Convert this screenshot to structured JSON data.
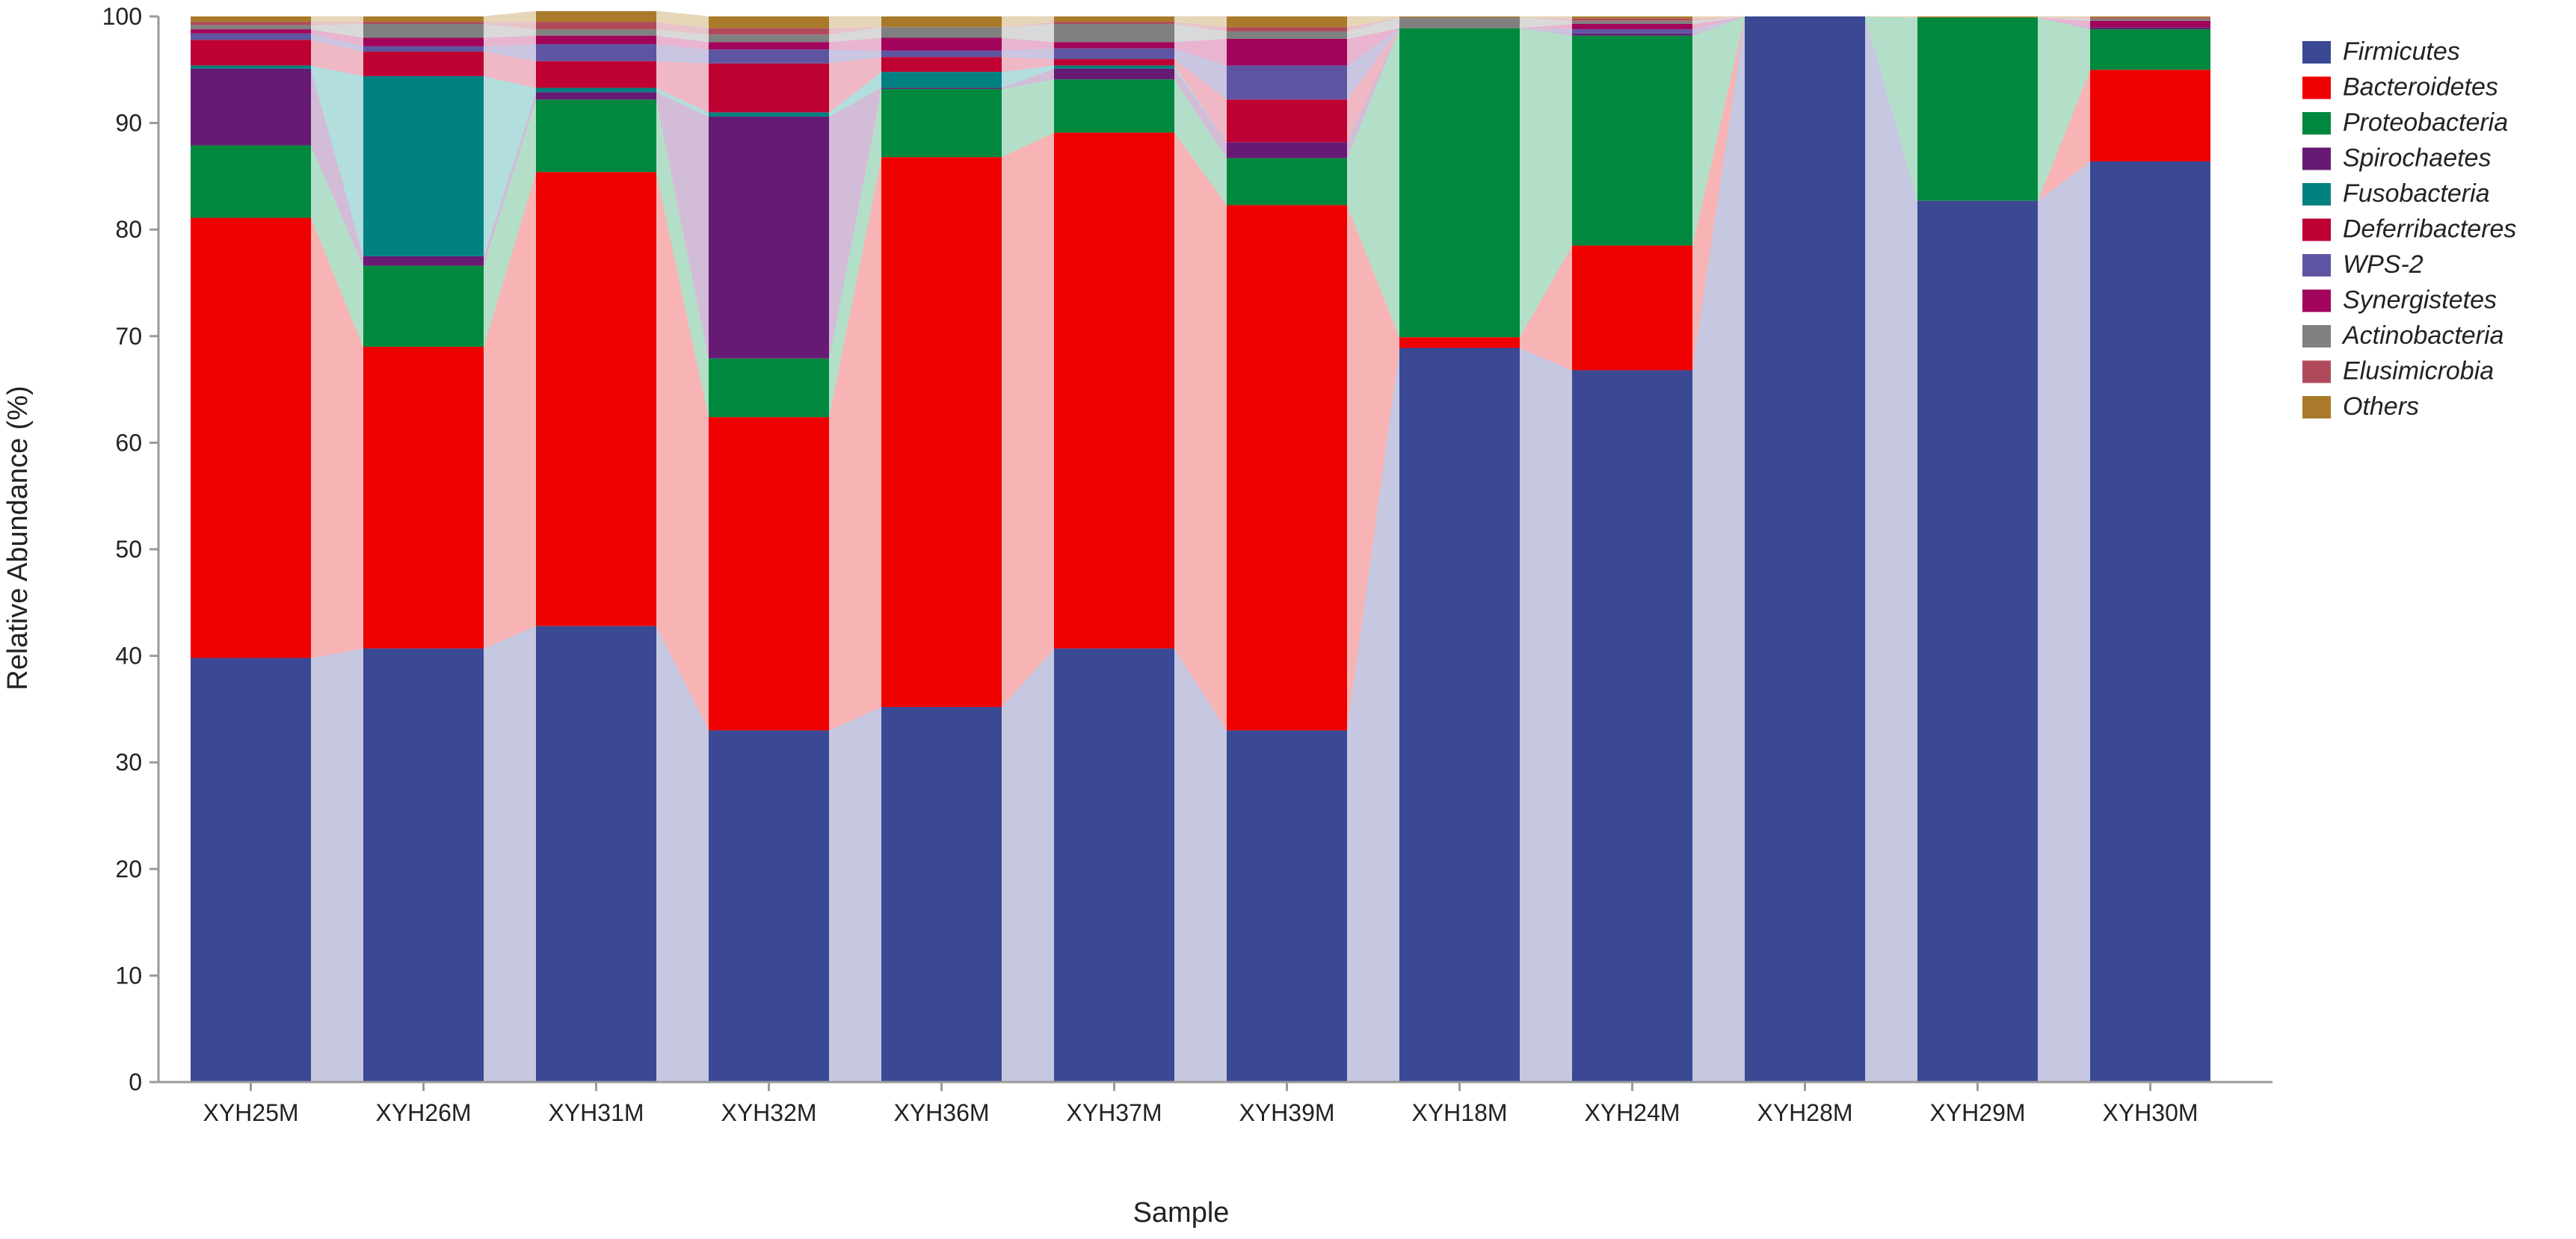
{
  "chart_data": {
    "type": "bar",
    "stacked": true,
    "percent": true,
    "xlabel": "Sample",
    "ylabel": "Relative Abundance (%)",
    "ylim": [
      0,
      100
    ],
    "yticks": [
      0,
      10,
      20,
      30,
      40,
      50,
      60,
      70,
      80,
      90,
      100
    ],
    "grid": false,
    "legend_position": "right",
    "categories": [
      "XYH25M",
      "XYH26M",
      "XYH31M",
      "XYH32M",
      "XYH36M",
      "XYH37M",
      "XYH39M",
      "XYH18M",
      "XYH24M",
      "XYH28M",
      "XYH29M",
      "XYH30M"
    ],
    "series": [
      {
        "name": "Firmicutes",
        "color": "#3b4894",
        "flow_color": "#c5c8e0",
        "values": [
          39.8,
          40.7,
          42.8,
          33.0,
          35.2,
          40.7,
          33.0,
          68.9,
          66.8,
          100.0,
          82.7,
          86.4
        ]
      },
      {
        "name": "Bacteroidetes",
        "color": "#ee0000",
        "flow_color": "#f8b4b4",
        "values": [
          41.3,
          28.3,
          42.6,
          29.4,
          51.6,
          48.4,
          49.3,
          1.0,
          11.7,
          0.0,
          0.0,
          8.6
        ]
      },
      {
        "name": "Proteobacteria",
        "color": "#00883e",
        "flow_color": "#b3dfc8",
        "values": [
          6.8,
          7.6,
          6.8,
          5.5,
          6.4,
          5.0,
          4.4,
          29.0,
          19.7,
          0.0,
          17.2,
          3.8
        ]
      },
      {
        "name": "Spirochaetes",
        "color": "#661a73",
        "flow_color": "#d2bcd8",
        "values": [
          7.2,
          0.9,
          0.7,
          22.7,
          0.1,
          1.0,
          1.5,
          0.0,
          0.2,
          0.0,
          0.0,
          0.2
        ]
      },
      {
        "name": "Fusobacteria",
        "color": "#008080",
        "flow_color": "#b3dede",
        "values": [
          0.3,
          16.9,
          0.4,
          0.4,
          1.5,
          0.3,
          0.0,
          0.0,
          0.0,
          0.0,
          0.0,
          0.0
        ]
      },
      {
        "name": "Deferribacteres",
        "color": "#be0032",
        "flow_color": "#f0b8c4",
        "values": [
          2.4,
          2.3,
          2.5,
          4.6,
          1.4,
          0.6,
          4.0,
          0.0,
          0.0,
          0.0,
          0.0,
          0.0
        ]
      },
      {
        "name": "WPS-2",
        "color": "#5e55a2",
        "flow_color": "#cac6e2",
        "values": [
          0.6,
          0.5,
          1.6,
          1.3,
          0.6,
          1.0,
          3.2,
          0.0,
          0.4,
          0.0,
          0.0,
          0.0
        ]
      },
      {
        "name": "Synergistetes",
        "color": "#a1045a",
        "flow_color": "#e8b4d0",
        "values": [
          0.4,
          0.8,
          0.8,
          0.7,
          1.2,
          0.6,
          2.5,
          0.0,
          0.5,
          0.0,
          0.0,
          0.6
        ]
      },
      {
        "name": "Actinobacteria",
        "color": "#808080",
        "flow_color": "#d9d9d9",
        "values": [
          0.4,
          1.3,
          0.6,
          0.7,
          1.0,
          1.7,
          0.7,
          1.0,
          0.3,
          0.0,
          0.0,
          0.2
        ]
      },
      {
        "name": "Elusimicrobia",
        "color": "#b04a5a",
        "flow_color": "#e8c4ca",
        "values": [
          0.3,
          0.2,
          0.7,
          0.6,
          0.0,
          0.2,
          0.4,
          0.0,
          0.2,
          0.0,
          0.0,
          0.1
        ]
      },
      {
        "name": "Others",
        "color": "#a87a2a",
        "flow_color": "#e6d6b8",
        "values": [
          0.5,
          0.5,
          1.0,
          1.1,
          1.0,
          0.5,
          1.0,
          0.1,
          0.2,
          0.0,
          0.1,
          0.1
        ]
      }
    ]
  }
}
